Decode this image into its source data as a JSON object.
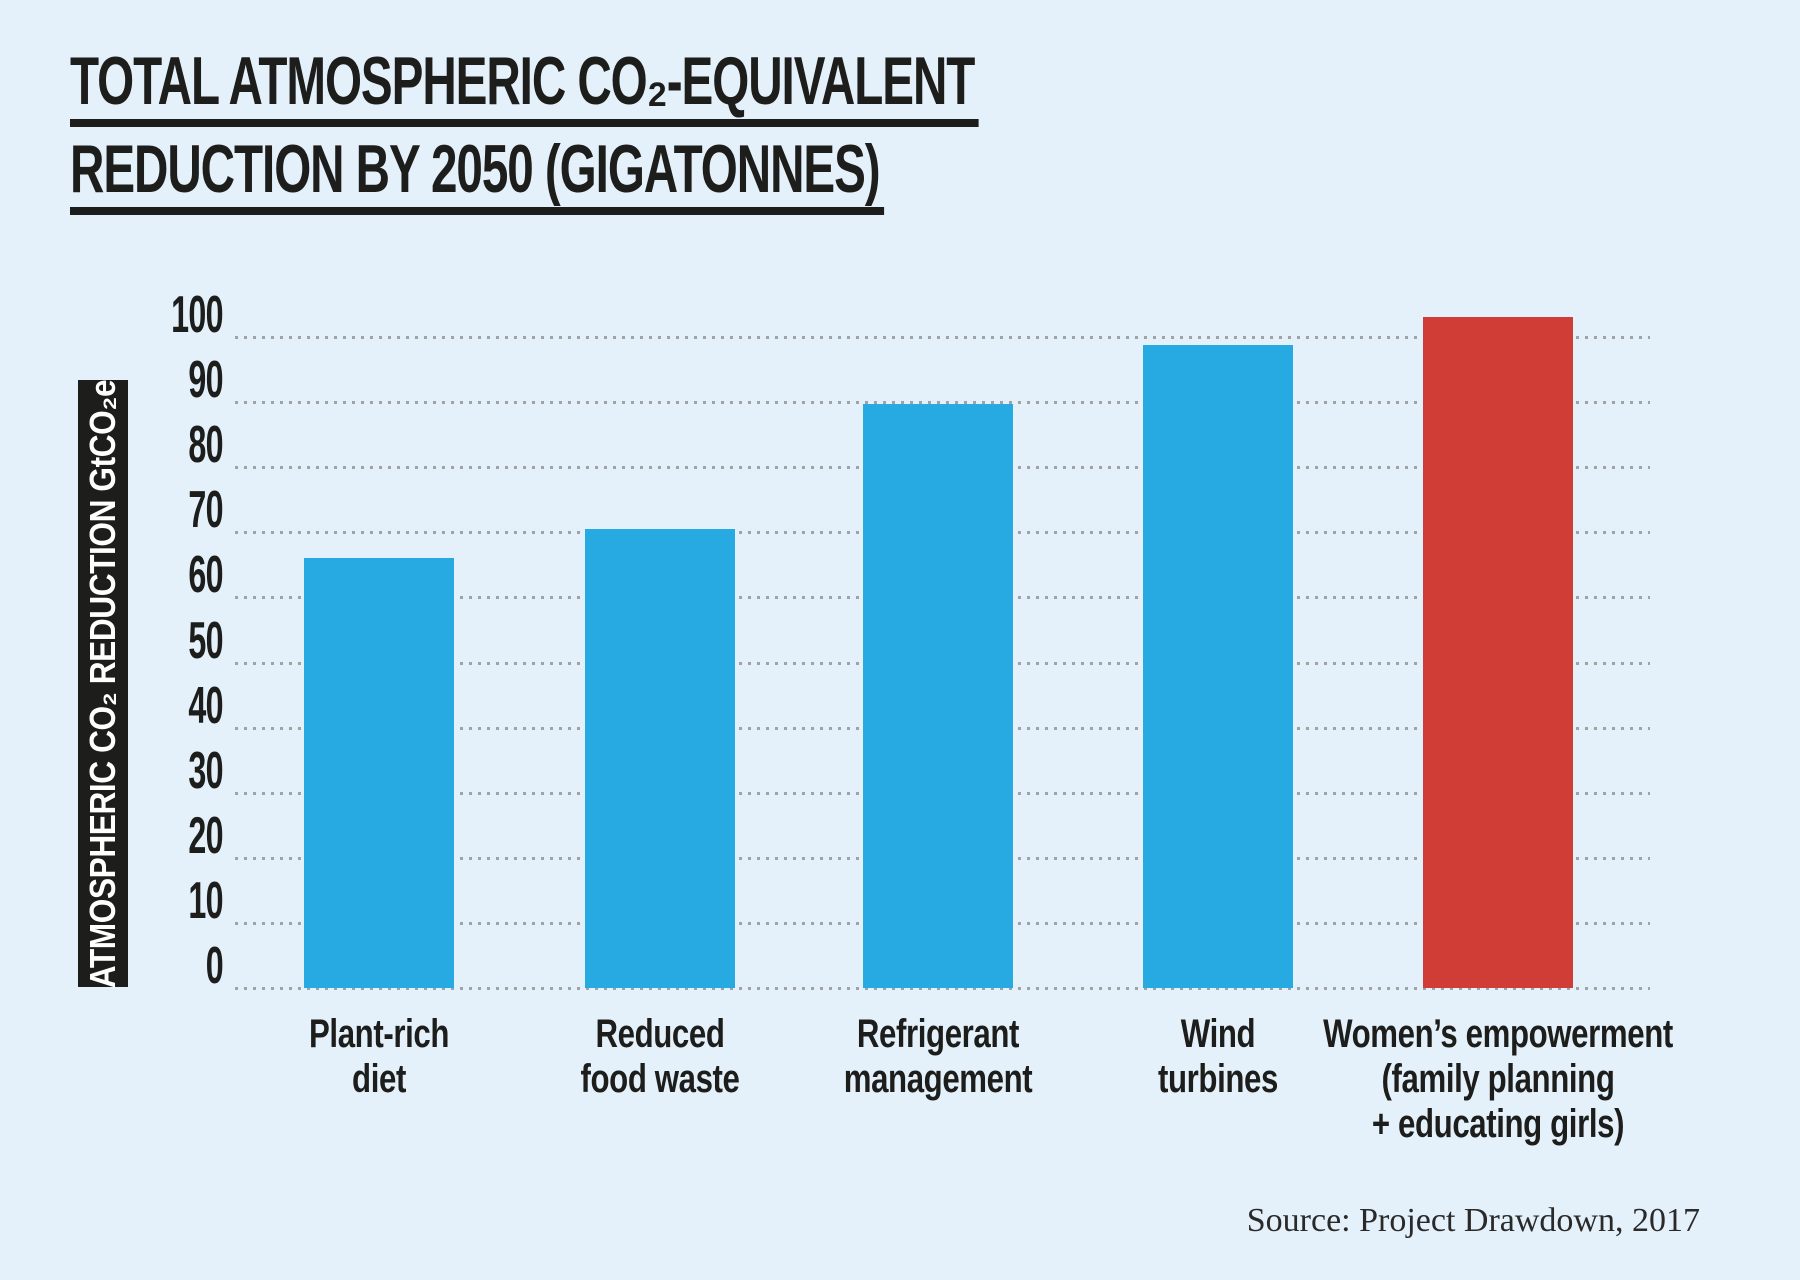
{
  "colors": {
    "background": "#e4f1fa",
    "bar_blue": "#27aae1",
    "bar_red": "#cf3d36",
    "text_black": "#1d1d1b",
    "grid_gray": "#8f8f8f",
    "ylabel_text": "#ffffff"
  },
  "chart_data": {
    "type": "bar",
    "title": "TOTAL ATMOSPHERIC CO₂-EQUIVALENT REDUCTION BY 2050 (GIGATONNES)",
    "title_lines": [
      "TOTAL ATMOSPHERIC CO₂-EQUIVALENT",
      "REDUCTION BY 2050 (GIGATONNES)"
    ],
    "ylabel": "ATMOSPHERIC CO₂ REDUCTION GtCO₂e",
    "xlabel": "",
    "categories": [
      "Plant-rich\ndiet",
      "Reduced\nfood waste",
      "Refrigerant\nmanagement",
      "Wind\nturbines",
      "Women’s empowerment\n(family planning\n+ educating girls)"
    ],
    "values": [
      66.1,
      70.5,
      89.7,
      98.7,
      103.1
    ],
    "bar_colors": [
      "#27aae1",
      "#27aae1",
      "#27aae1",
      "#27aae1",
      "#cf3d36"
    ],
    "yticks": [
      0,
      10,
      20,
      30,
      40,
      50,
      60,
      70,
      80,
      90,
      100
    ],
    "ylim": [
      0,
      105
    ],
    "grid": "horizontal dotted",
    "legend_position": "none",
    "source": "Source: Project Drawdown, 2017"
  }
}
